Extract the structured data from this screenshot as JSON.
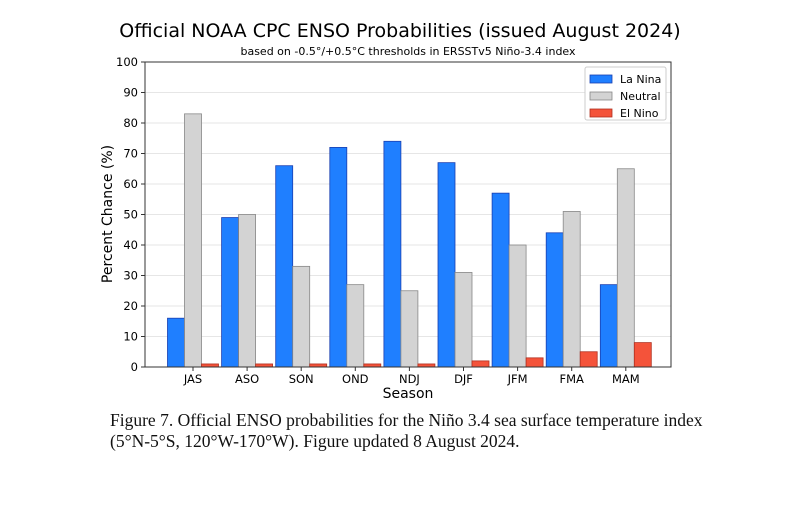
{
  "chart_data": {
    "type": "bar",
    "title": "Official NOAA CPC ENSO Probabilities (issued August 2024)",
    "subtitle": "based on -0.5°/+0.5°C thresholds in ERSSTv5 Niño-3.4 index",
    "xlabel": "Season",
    "ylabel": "Percent Chance (%)",
    "ylim": [
      0,
      100
    ],
    "yticks": [
      0,
      10,
      20,
      30,
      40,
      50,
      60,
      70,
      80,
      90,
      100
    ],
    "grid": true,
    "legend_position": "top-right",
    "categories": [
      "JAS",
      "ASO",
      "SON",
      "OND",
      "NDJ",
      "DJF",
      "JFM",
      "FMA",
      "MAM"
    ],
    "series": [
      {
        "name": "La Nina",
        "color": "#1f7fff",
        "edge": "#1a3fb0",
        "values": [
          16,
          49,
          66,
          72,
          74,
          67,
          57,
          44,
          27
        ]
      },
      {
        "name": "Neutral",
        "color": "#d3d3d3",
        "edge": "#888888",
        "values": [
          83,
          50,
          33,
          27,
          25,
          31,
          40,
          51,
          65
        ]
      },
      {
        "name": "El Nino",
        "color": "#f4533a",
        "edge": "#b03020",
        "values": [
          1,
          1,
          1,
          1,
          1,
          2,
          3,
          5,
          8
        ]
      }
    ]
  },
  "caption": {
    "line1": "Figure 7. Official ENSO probabilities for the Niño 3.4 sea surface temperature index",
    "line2": "(5°N-5°S, 120°W-170°W). Figure updated 8 August 2024."
  }
}
